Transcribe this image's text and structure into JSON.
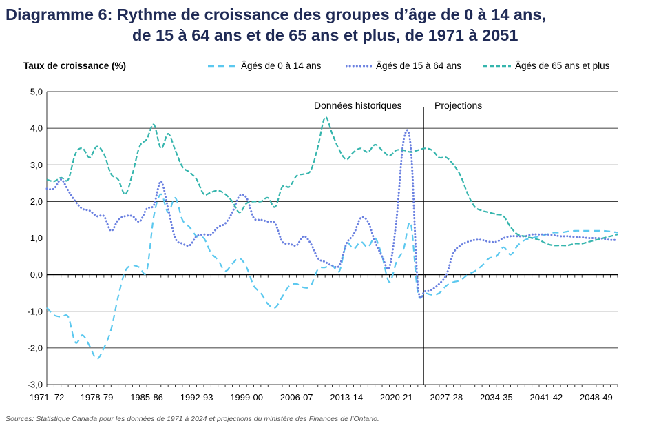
{
  "title_line1": "Diagramme 6: Rythme de croissance des groupes d’âge de 0 à 14 ans,",
  "title_line2": "de 15 à 64 ans et de 65 ans et plus, de 1971 à 2051",
  "source": "Sources: Statistique Canada pour les données de 1971 à 2024 et projections du ministère des Finances de l’Ontario.",
  "colors": {
    "s0_14": "#5bc8ef",
    "s15_64": "#6a80e0",
    "s65": "#35b5ad",
    "grid": "#000000"
  },
  "chart_data": {
    "type": "line",
    "ylabel": "Taux de croissance (%)",
    "ylim": [
      -3,
      5
    ],
    "yticks": [
      "5,0",
      "4,0",
      "3,0",
      "2,0",
      "1,0",
      "0,0",
      "-1,0",
      "-2,0",
      "-3,0"
    ],
    "xticks": [
      "1971–72",
      "1978-79",
      "1985-86",
      "1992-93",
      "1999-00",
      "2006-07",
      "2013-14",
      "2020-21",
      "2027-28",
      "2034-35",
      "2041-42",
      "2048-49"
    ],
    "xtick_years": [
      1971,
      1978,
      1985,
      1992,
      1999,
      2006,
      2013,
      2020,
      2027,
      2034,
      2041,
      2048
    ],
    "xlim": [
      1971,
      2051
    ],
    "annotations": {
      "historical": "Données historiques",
      "projections": "Projections",
      "divider_year": 2024
    },
    "grid": true,
    "legend_position": "top",
    "series": [
      {
        "name": "Âgés de 0 à 14 ans",
        "style": "dashed",
        "years": [
          1971,
          1972,
          1973,
          1974,
          1975,
          1976,
          1977,
          1978,
          1979,
          1980,
          1981,
          1982,
          1983,
          1984,
          1985,
          1986,
          1987,
          1988,
          1989,
          1990,
          1991,
          1992,
          1993,
          1994,
          1995,
          1996,
          1997,
          1998,
          1999,
          2000,
          2001,
          2002,
          2003,
          2004,
          2005,
          2006,
          2007,
          2008,
          2009,
          2010,
          2011,
          2012,
          2013,
          2014,
          2015,
          2016,
          2017,
          2018,
          2019,
          2020,
          2021,
          2022,
          2023,
          2024,
          2025,
          2026,
          2027,
          2028,
          2029,
          2030,
          2031,
          2032,
          2033,
          2034,
          2035,
          2036,
          2037,
          2038,
          2039,
          2040,
          2041,
          2042,
          2043,
          2044,
          2045,
          2046,
          2047,
          2048,
          2049,
          2050,
          2051
        ],
        "values": [
          -0.9,
          -1.1,
          -1.15,
          -1.15,
          -1.85,
          -1.65,
          -1.95,
          -2.3,
          -2.0,
          -1.5,
          -0.6,
          0.1,
          0.25,
          0.2,
          0.1,
          1.6,
          2.2,
          1.7,
          2.1,
          1.5,
          1.3,
          1.05,
          1.0,
          0.6,
          0.4,
          0.1,
          0.3,
          0.45,
          0.2,
          -0.3,
          -0.5,
          -0.8,
          -0.9,
          -0.6,
          -0.3,
          -0.25,
          -0.35,
          -0.3,
          0.15,
          0.2,
          0.25,
          0.1,
          0.85,
          0.7,
          0.9,
          0.75,
          1.0,
          0.5,
          -0.2,
          0.35,
          0.7,
          1.4,
          -0.5,
          -0.5,
          -0.55,
          -0.5,
          -0.3,
          -0.2,
          -0.15,
          0.0,
          0.1,
          0.25,
          0.45,
          0.5,
          0.75,
          0.55,
          0.8,
          0.95,
          1.0,
          1.05,
          1.1,
          1.15,
          1.15,
          1.18,
          1.2,
          1.2,
          1.2,
          1.2,
          1.2,
          1.18,
          1.15
        ]
      },
      {
        "name": "Âgés de 15 à 64 ans",
        "style": "dotted",
        "years": [
          1971,
          1972,
          1973,
          1974,
          1975,
          1976,
          1977,
          1978,
          1979,
          1980,
          1981,
          1982,
          1983,
          1984,
          1985,
          1986,
          1987,
          1988,
          1989,
          1990,
          1991,
          1992,
          1993,
          1994,
          1995,
          1996,
          1997,
          1998,
          1999,
          2000,
          2001,
          2002,
          2003,
          2004,
          2005,
          2006,
          2007,
          2008,
          2009,
          2010,
          2011,
          2012,
          2013,
          2014,
          2015,
          2016,
          2017,
          2018,
          2019,
          2020,
          2021,
          2022,
          2023,
          2024,
          2025,
          2026,
          2027,
          2028,
          2029,
          2030,
          2031,
          2032,
          2033,
          2034,
          2035,
          2036,
          2037,
          2038,
          2039,
          2040,
          2041,
          2042,
          2043,
          2044,
          2045,
          2046,
          2047,
          2048,
          2049,
          2050,
          2051
        ],
        "values": [
          2.35,
          2.35,
          2.6,
          2.3,
          2.0,
          1.8,
          1.75,
          1.6,
          1.6,
          1.2,
          1.5,
          1.6,
          1.6,
          1.45,
          1.8,
          1.9,
          2.55,
          1.8,
          1.0,
          0.85,
          0.8,
          1.05,
          1.1,
          1.1,
          1.3,
          1.4,
          1.7,
          2.15,
          2.1,
          1.55,
          1.5,
          1.45,
          1.4,
          0.9,
          0.85,
          0.8,
          1.05,
          0.85,
          0.45,
          0.35,
          0.25,
          0.25,
          0.85,
          1.1,
          1.55,
          1.45,
          0.9,
          0.5,
          0.2,
          1.5,
          3.65,
          3.5,
          -0.3,
          -0.45,
          -0.4,
          -0.25,
          0.0,
          0.6,
          0.8,
          0.9,
          0.95,
          0.95,
          0.9,
          0.9,
          1.0,
          1.05,
          1.05,
          1.05,
          1.1,
          1.1,
          1.1,
          1.08,
          1.05,
          1.05,
          1.03,
          1.02,
          1.0,
          1.0,
          0.98,
          0.95,
          0.95
        ]
      },
      {
        "name": "Âgés de 65 ans et plus",
        "style": "dash-dot",
        "years": [
          1971,
          1972,
          1973,
          1974,
          1975,
          1976,
          1977,
          1978,
          1979,
          1980,
          1981,
          1982,
          1983,
          1984,
          1985,
          1986,
          1987,
          1988,
          1989,
          1990,
          1991,
          1992,
          1993,
          1994,
          1995,
          1996,
          1997,
          1998,
          1999,
          2000,
          2001,
          2002,
          2003,
          2004,
          2005,
          2006,
          2007,
          2008,
          2009,
          2010,
          2011,
          2012,
          2013,
          2014,
          2015,
          2016,
          2017,
          2018,
          2019,
          2020,
          2021,
          2022,
          2023,
          2024,
          2025,
          2026,
          2027,
          2028,
          2029,
          2030,
          2031,
          2032,
          2033,
          2034,
          2035,
          2036,
          2037,
          2038,
          2039,
          2040,
          2041,
          2042,
          2043,
          2044,
          2045,
          2046,
          2047,
          2048,
          2049,
          2050,
          2051
        ],
        "values": [
          2.6,
          2.55,
          2.65,
          2.6,
          3.3,
          3.45,
          3.2,
          3.5,
          3.3,
          2.75,
          2.6,
          2.2,
          2.75,
          3.5,
          3.7,
          4.1,
          3.45,
          3.85,
          3.4,
          2.95,
          2.8,
          2.6,
          2.2,
          2.25,
          2.3,
          2.2,
          2.0,
          1.7,
          1.95,
          2.0,
          2.0,
          2.1,
          1.85,
          2.4,
          2.4,
          2.7,
          2.75,
          2.85,
          3.5,
          4.3,
          3.85,
          3.4,
          3.15,
          3.35,
          3.45,
          3.35,
          3.55,
          3.4,
          3.25,
          3.4,
          3.4,
          3.35,
          3.4,
          3.45,
          3.4,
          3.2,
          3.2,
          3.0,
          2.7,
          2.2,
          1.85,
          1.75,
          1.7,
          1.65,
          1.6,
          1.3,
          1.1,
          1.05,
          1.0,
          0.95,
          0.85,
          0.8,
          0.8,
          0.8,
          0.85,
          0.85,
          0.9,
          0.95,
          1.0,
          1.05,
          1.1
        ]
      }
    ]
  }
}
